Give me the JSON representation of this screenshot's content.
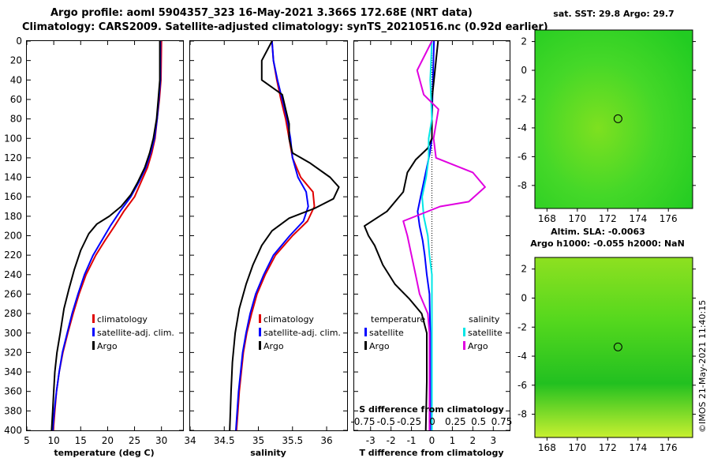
{
  "header": {
    "title_line1": "Argo profile: aoml 5904357_323 16-May-2021 3.366S 172.68E (NRT data)",
    "title_line2": "Climatology: CARS2009. Satellite-adjusted climatology: synTS_20210516.nc (0.92d earlier)"
  },
  "colors": {
    "climatology": "#e00000",
    "satellite": "#0000ff",
    "argo": "#000000",
    "sat_salinity": "#00e6e6",
    "argo_salinity": "#e000e0"
  },
  "footer": {
    "credit": "©IMOS 21-May-2021 11:40:15"
  },
  "chart_data": [
    {
      "id": "temperature",
      "type": "line",
      "xlabel": "temperature (deg C)",
      "xlim": [
        5,
        34
      ],
      "xticks": [
        5,
        10,
        15,
        20,
        25,
        30
      ],
      "ylim": [
        0,
        400
      ],
      "yticks": [
        0,
        20,
        40,
        60,
        80,
        100,
        120,
        140,
        160,
        180,
        200,
        220,
        240,
        260,
        280,
        300,
        320,
        340,
        360,
        380,
        400
      ],
      "legend": [
        "climatology",
        "satellite-adj. clim.",
        "Argo"
      ],
      "series": [
        {
          "name": "climatology",
          "color": "#e00000",
          "points": [
            [
              30,
              0
            ],
            [
              29.9,
              40
            ],
            [
              29.6,
              60
            ],
            [
              29.2,
              80
            ],
            [
              28.8,
              100
            ],
            [
              28.2,
              115
            ],
            [
              27.4,
              130
            ],
            [
              26.2,
              145
            ],
            [
              25,
              160
            ],
            [
              23,
              175
            ],
            [
              21.3,
              190
            ],
            [
              19.5,
              205
            ],
            [
              17.8,
              220
            ],
            [
              16,
              240
            ],
            [
              14.7,
              260
            ],
            [
              13.6,
              280
            ],
            [
              12.6,
              300
            ],
            [
              11.7,
              320
            ],
            [
              11,
              340
            ],
            [
              10.5,
              360
            ],
            [
              10.2,
              380
            ],
            [
              9.9,
              400
            ]
          ]
        },
        {
          "name": "satellite-adj. clim.",
          "color": "#0000ff",
          "points": [
            [
              29.8,
              0
            ],
            [
              29.8,
              40
            ],
            [
              29.5,
              60
            ],
            [
              29.2,
              80
            ],
            [
              28.7,
              100
            ],
            [
              28,
              115
            ],
            [
              27.1,
              130
            ],
            [
              25.8,
              145
            ],
            [
              24.3,
              160
            ],
            [
              22.3,
              175
            ],
            [
              20.5,
              190
            ],
            [
              18.9,
              205
            ],
            [
              17.3,
              220
            ],
            [
              15.7,
              240
            ],
            [
              14.5,
              260
            ],
            [
              13.4,
              280
            ],
            [
              12.5,
              300
            ],
            [
              11.6,
              320
            ],
            [
              11,
              340
            ],
            [
              10.5,
              360
            ],
            [
              10.1,
              380
            ],
            [
              9.8,
              400
            ]
          ]
        },
        {
          "name": "Argo",
          "color": "#000000",
          "points": [
            [
              29.7,
              0
            ],
            [
              29.7,
              40
            ],
            [
              29.4,
              60
            ],
            [
              29.1,
              80
            ],
            [
              28.5,
              100
            ],
            [
              27.8,
              115
            ],
            [
              26.9,
              130
            ],
            [
              25.6,
              145
            ],
            [
              24.3,
              158
            ],
            [
              22.5,
              170
            ],
            [
              20.3,
              180
            ],
            [
              18,
              188
            ],
            [
              16.5,
              198
            ],
            [
              15,
              215
            ],
            [
              13.8,
              235
            ],
            [
              12.8,
              255
            ],
            [
              11.9,
              275
            ],
            [
              11.2,
              300
            ],
            [
              10.6,
              320
            ],
            [
              10.2,
              340
            ],
            [
              10,
              360
            ],
            [
              9.8,
              380
            ],
            [
              9.6,
              400
            ]
          ]
        }
      ]
    },
    {
      "id": "salinity",
      "type": "line",
      "xlabel": "salinity",
      "xlim": [
        34,
        36.3
      ],
      "xticks": [
        34,
        34.5,
        35,
        35.5,
        36
      ],
      "ylim": [
        0,
        400
      ],
      "legend": [
        "climatology",
        "satellite-adj. clim.",
        "Argo"
      ],
      "series": [
        {
          "name": "climatology",
          "color": "#e00000",
          "points": [
            [
              35.2,
              0
            ],
            [
              35.22,
              20
            ],
            [
              35.27,
              40
            ],
            [
              35.33,
              60
            ],
            [
              35.4,
              80
            ],
            [
              35.45,
              100
            ],
            [
              35.5,
              120
            ],
            [
              35.62,
              140
            ],
            [
              35.8,
              155
            ],
            [
              35.82,
              170
            ],
            [
              35.72,
              185
            ],
            [
              35.5,
              200
            ],
            [
              35.25,
              220
            ],
            [
              35.1,
              240
            ],
            [
              34.98,
              260
            ],
            [
              34.9,
              280
            ],
            [
              34.83,
              300
            ],
            [
              34.78,
              320
            ],
            [
              34.75,
              340
            ],
            [
              34.72,
              360
            ],
            [
              34.7,
              380
            ],
            [
              34.68,
              400
            ]
          ]
        },
        {
          "name": "satellite-adj. clim.",
          "color": "#0000ff",
          "points": [
            [
              35.2,
              0
            ],
            [
              35.22,
              20
            ],
            [
              35.28,
              40
            ],
            [
              35.35,
              60
            ],
            [
              35.42,
              80
            ],
            [
              35.47,
              100
            ],
            [
              35.5,
              120
            ],
            [
              35.58,
              140
            ],
            [
              35.7,
              155
            ],
            [
              35.73,
              170
            ],
            [
              35.66,
              185
            ],
            [
              35.46,
              200
            ],
            [
              35.22,
              220
            ],
            [
              35.08,
              240
            ],
            [
              34.96,
              260
            ],
            [
              34.88,
              280
            ],
            [
              34.82,
              300
            ],
            [
              34.77,
              320
            ],
            [
              34.74,
              340
            ],
            [
              34.71,
              360
            ],
            [
              34.69,
              380
            ],
            [
              34.67,
              400
            ]
          ]
        },
        {
          "name": "Argo",
          "color": "#000000",
          "points": [
            [
              35.2,
              0
            ],
            [
              35.05,
              20
            ],
            [
              35.05,
              40
            ],
            [
              35.35,
              55
            ],
            [
              35.4,
              70
            ],
            [
              35.45,
              85
            ],
            [
              35.45,
              100
            ],
            [
              35.5,
              115
            ],
            [
              35.75,
              125
            ],
            [
              36.05,
              140
            ],
            [
              36.18,
              150
            ],
            [
              36.1,
              162
            ],
            [
              35.82,
              172
            ],
            [
              35.45,
              182
            ],
            [
              35.2,
              195
            ],
            [
              35.05,
              210
            ],
            [
              34.92,
              230
            ],
            [
              34.82,
              250
            ],
            [
              34.72,
              275
            ],
            [
              34.66,
              300
            ],
            [
              34.62,
              330
            ],
            [
              34.6,
              360
            ],
            [
              34.58,
              400
            ]
          ]
        }
      ]
    },
    {
      "id": "difference",
      "type": "line",
      "xlabel": "T difference from climatology",
      "toplabel": "S difference from climatology",
      "xlim": [
        -3.8,
        3.8
      ],
      "xticks": [
        -3,
        -2,
        -1,
        0,
        1,
        2,
        3
      ],
      "s_ticks": [
        "-0.75",
        "-0.5",
        "-0.25",
        "0",
        "0.25",
        "0.5",
        "0.75"
      ],
      "ylim": [
        0,
        400
      ],
      "legend_left_title": "temperature",
      "legend_right_title": "salinity",
      "legend_left": [
        "satellite",
        "Argo"
      ],
      "legend_right": [
        "satellite",
        "Argo"
      ],
      "series": [
        {
          "name": "temperature satellite",
          "color": "#0000ff",
          "points": [
            [
              0.1,
              0
            ],
            [
              0.05,
              40
            ],
            [
              0,
              80
            ],
            [
              0,
              100
            ],
            [
              -0.1,
              115
            ],
            [
              -0.25,
              130
            ],
            [
              -0.4,
              145
            ],
            [
              -0.55,
              160
            ],
            [
              -0.7,
              175
            ],
            [
              -0.6,
              190
            ],
            [
              -0.45,
              205
            ],
            [
              -0.35,
              220
            ],
            [
              -0.25,
              240
            ],
            [
              -0.12,
              260
            ],
            [
              -0.08,
              300
            ],
            [
              -0.08,
              400
            ]
          ]
        },
        {
          "name": "temperature Argo",
          "color": "#000000",
          "points": [
            [
              0.3,
              0
            ],
            [
              0.1,
              40
            ],
            [
              0,
              60
            ],
            [
              0,
              100
            ],
            [
              -0.2,
              110
            ],
            [
              -0.8,
              122
            ],
            [
              -1.2,
              135
            ],
            [
              -1.4,
              155
            ],
            [
              -2.2,
              175
            ],
            [
              -3.3,
              190
            ],
            [
              -3.1,
              200
            ],
            [
              -2.8,
              210
            ],
            [
              -2.4,
              230
            ],
            [
              -1.8,
              250
            ],
            [
              -1.1,
              265
            ],
            [
              -0.5,
              280
            ],
            [
              -0.25,
              300
            ],
            [
              -0.25,
              350
            ],
            [
              -0.3,
              400
            ]
          ]
        },
        {
          "name": "salinity satellite",
          "color": "#00e6e6",
          "points": [
            [
              0,
              0
            ],
            [
              -0.02,
              40
            ],
            [
              0,
              80
            ],
            [
              -0.04,
              100
            ],
            [
              -0.04,
              120
            ],
            [
              -0.07,
              140
            ],
            [
              -0.12,
              160
            ],
            [
              -0.1,
              180
            ],
            [
              -0.05,
              200
            ],
            [
              -0.03,
              220
            ],
            [
              0,
              240
            ],
            [
              0,
              400
            ]
          ]
        },
        {
          "name": "salinity Argo",
          "color": "#e000e0",
          "points": [
            [
              0,
              0
            ],
            [
              -0.18,
              30
            ],
            [
              -0.1,
              55
            ],
            [
              0.08,
              70
            ],
            [
              0.05,
              85
            ],
            [
              0.02,
              100
            ],
            [
              0.05,
              120
            ],
            [
              0.5,
              135
            ],
            [
              0.65,
              150
            ],
            [
              0.45,
              165
            ],
            [
              0.1,
              170
            ],
            [
              -0.35,
              185
            ],
            [
              -0.3,
              200
            ],
            [
              -0.25,
              220
            ],
            [
              -0.2,
              240
            ],
            [
              -0.15,
              260
            ],
            [
              -0.05,
              280
            ],
            [
              -0.03,
              300
            ],
            [
              -0.03,
              400
            ]
          ]
        }
      ]
    }
  ],
  "maps": [
    {
      "title": "sat. SST: 29.8 Argo: 29.7",
      "xticks": [
        "168",
        "170",
        "172",
        "174",
        "176"
      ],
      "yticks": [
        "2",
        "0",
        "-2",
        "-4",
        "-6",
        "-8"
      ],
      "marker_lon": 172.68,
      "marker_lat": -3.366
    },
    {
      "title_line1": "Altim. SLA: -0.0063",
      "title_line2": "Argo h1000: -0.055 h2000: NaN",
      "xticks": [
        "168",
        "170",
        "172",
        "174",
        "176"
      ],
      "yticks": [
        "2",
        "0",
        "-2",
        "-4",
        "-6",
        "-8"
      ],
      "marker_lon": 172.68,
      "marker_lat": -3.366
    }
  ]
}
